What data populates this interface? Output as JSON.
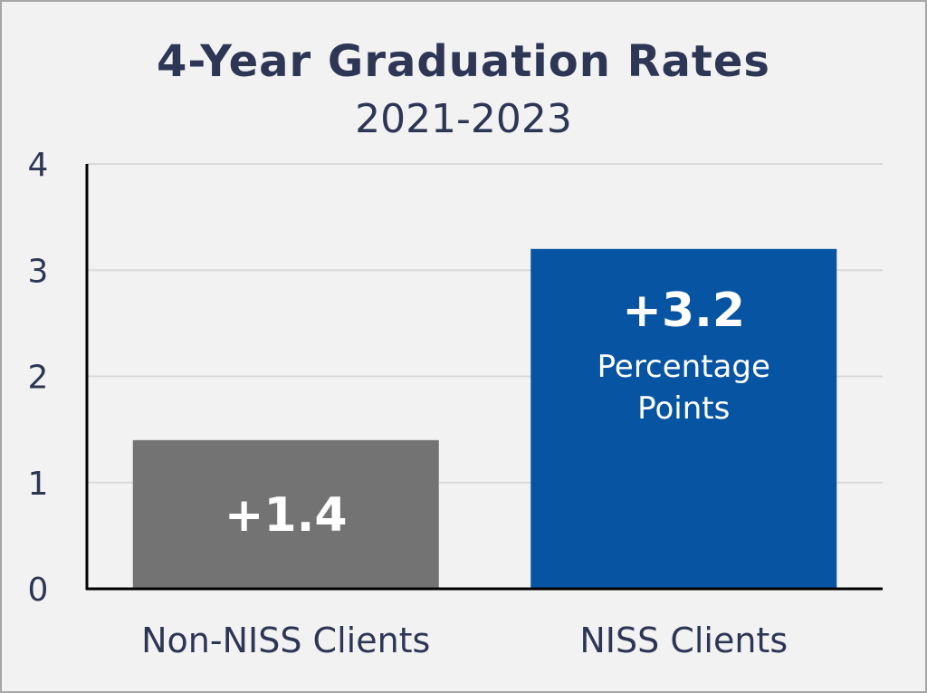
{
  "chart_data": {
    "type": "bar",
    "title": "4-Year Graduation Rates",
    "subtitle": "2021-2023",
    "categories": [
      "Non-NISS Clients",
      "NISS Clients"
    ],
    "values": [
      1.4,
      3.2
    ],
    "colors": [
      "#737373",
      "#0754a3"
    ],
    "ylim": [
      0,
      4
    ],
    "yticks": [
      "0",
      "1",
      "2",
      "3",
      "4"
    ],
    "data_labels": [
      {
        "value": "+1.4",
        "unit_lines": []
      },
      {
        "value": "+3.2",
        "unit_lines": [
          "Percentage",
          "Points"
        ]
      }
    ],
    "xlabel": "",
    "ylabel": "",
    "grid": true,
    "legend": "none"
  }
}
